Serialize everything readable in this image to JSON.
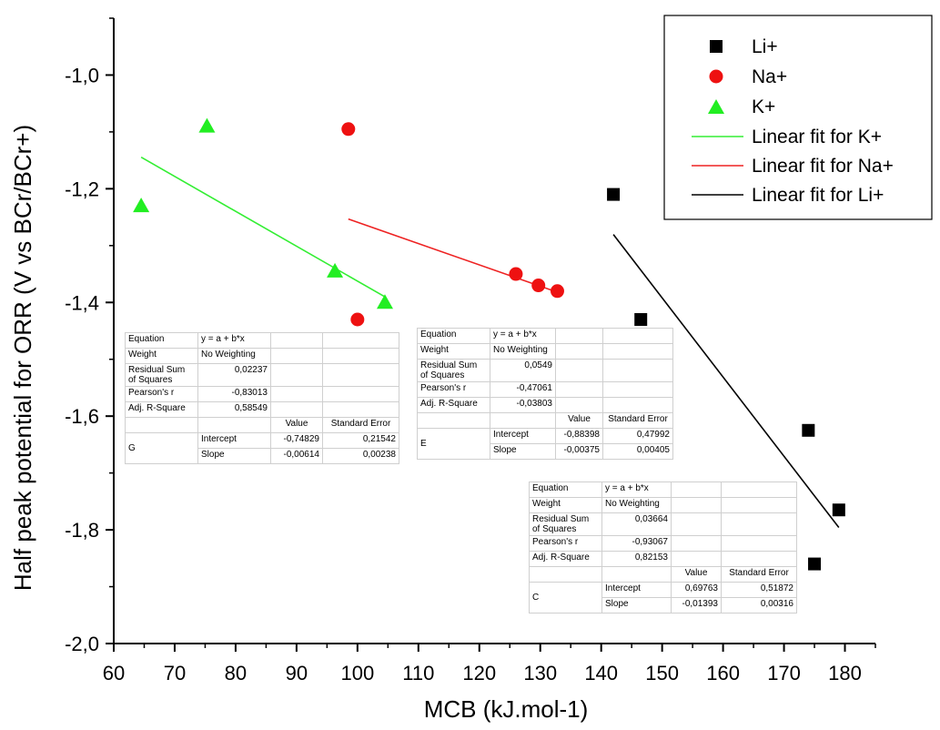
{
  "chart_data": {
    "type": "scatter",
    "xlabel": "MCB (kJ.mol-1)",
    "ylabel": "Half peak potential for ORR (V vs BCr/BCr+)",
    "xlim": [
      60,
      185
    ],
    "ylim": [
      -2.0,
      -0.9
    ],
    "x_ticks": [
      "60",
      "70",
      "80",
      "90",
      "100",
      "110",
      "120",
      "130",
      "140",
      "150",
      "160",
      "170",
      "180"
    ],
    "y_ticks": [
      "-1,0",
      "-1,2",
      "-1,4",
      "-1,6",
      "-1,8",
      "-2,0"
    ],
    "grid": false,
    "legend_position": "top-right",
    "series": [
      {
        "name": "Li+",
        "marker": "square",
        "color": "#000000",
        "x": [
          142,
          146.5,
          174,
          179,
          175
        ],
        "y": [
          -1.21,
          -1.43,
          -1.625,
          -1.765,
          -1.86
        ]
      },
      {
        "name": "Na+",
        "marker": "circle",
        "color": "#ee1111",
        "x": [
          98.5,
          100,
          126,
          129.7,
          132.8
        ],
        "y": [
          -1.095,
          -1.43,
          -1.35,
          -1.37,
          -1.38
        ]
      },
      {
        "name": "K+",
        "marker": "triangle",
        "color": "#22ee22",
        "x": [
          64.5,
          75.3,
          96.3,
          104.5
        ],
        "y": [
          -1.23,
          -1.09,
          -1.345,
          -1.4
        ]
      }
    ],
    "fits": [
      {
        "name": "Linear fit for K+",
        "color": "#33ee33",
        "x": [
          64.5,
          104.5
        ],
        "y": [
          -1.1445,
          -1.3901
        ]
      },
      {
        "name": "Linear fit for Na+",
        "color": "#ee2222",
        "x": [
          98.5,
          132.8
        ],
        "y": [
          -1.2533,
          -1.3819
        ]
      },
      {
        "name": "Linear fit for Li+",
        "color": "#000000",
        "x": [
          142,
          179
        ],
        "y": [
          -1.2805,
          -1.7959
        ]
      }
    ],
    "legend_entries": [
      "Li+",
      "Na+",
      "K+",
      "Linear fit for K+",
      "Linear fit for Na+",
      "Linear fit for Li+"
    ]
  },
  "tables": {
    "g": {
      "equation_label": "Equation",
      "equation": "y = a + b*x",
      "weight_label": "Weight",
      "weight": "No Weighting",
      "rss_label": "Residual Sum of Squares",
      "rss": "0,02237",
      "pearson_label": "Pearson's r",
      "pearson": "-0,83013",
      "adjr_label": "Adj. R-Square",
      "adjr": "0,58549",
      "value_header": "Value",
      "se_header": "Standard Error",
      "label": "G",
      "intercept_label": "Intercept",
      "intercept": "-0,74829",
      "intercept_se": "0,21542",
      "slope_label": "Slope",
      "slope": "-0,00614",
      "slope_se": "0,00238"
    },
    "e": {
      "equation_label": "Equation",
      "equation": "y = a + b*x",
      "weight_label": "Weight",
      "weight": "No Weighting",
      "rss_label": "Residual Sum of Squares",
      "rss": "0,0549",
      "pearson_label": "Pearson's r",
      "pearson": "-0,47061",
      "adjr_label": "Adj. R-Square",
      "adjr": "-0,03803",
      "value_header": "Value",
      "se_header": "Standard Error",
      "label": "E",
      "intercept_label": "Intercept",
      "intercept": "-0,88398",
      "intercept_se": "0,47992",
      "slope_label": "Slope",
      "slope": "-0,00375",
      "slope_se": "0,00405"
    },
    "c": {
      "equation_label": "Equation",
      "equation": "y = a + b*x",
      "weight_label": "Weight",
      "weight": "No Weighting",
      "rss_label": "Residual Sum of Squares",
      "rss": "0,03664",
      "pearson_label": "Pearson's r",
      "pearson": "-0,93067",
      "adjr_label": "Adj. R-Square",
      "adjr": "0,82153",
      "value_header": "Value",
      "se_header": "Standard Error",
      "label": "C",
      "intercept_label": "Intercept",
      "intercept": "0,69763",
      "intercept_se": "0,51872",
      "slope_label": "Slope",
      "slope": "-0,01393",
      "slope_se": "0,00316"
    }
  }
}
